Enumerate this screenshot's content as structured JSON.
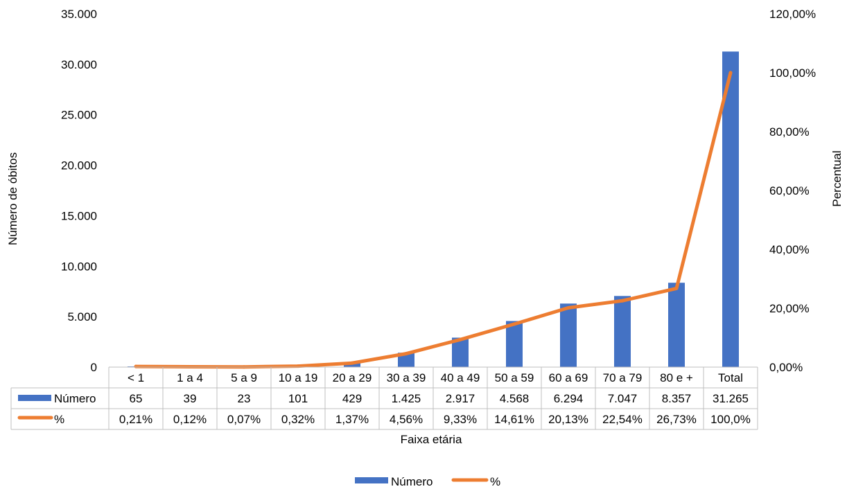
{
  "chart_data": {
    "type": "bar",
    "categories": [
      "< 1",
      "1 a 4",
      "5 a 9",
      "10 a 19",
      "20 a 29",
      "30 a 39",
      "40 a 49",
      "50 a 59",
      "60 a 69",
      "70 a 79",
      "80 e +",
      "Total"
    ],
    "series": [
      {
        "name": "Número",
        "type": "bar",
        "axis": "left",
        "color": "#4472c4",
        "values": [
          65,
          39,
          23,
          101,
          429,
          1425,
          2917,
          4568,
          6294,
          7047,
          8357,
          31265
        ],
        "labels": [
          "65",
          "39",
          "23",
          "101",
          "429",
          "1.425",
          "2.917",
          "4.568",
          "6.294",
          "7.047",
          "8.357",
          "31.265"
        ]
      },
      {
        "name": "%",
        "type": "line",
        "axis": "right",
        "color": "#ed7d31",
        "values": [
          0.21,
          0.12,
          0.07,
          0.32,
          1.37,
          4.56,
          9.33,
          14.61,
          20.13,
          22.54,
          26.73,
          100.0
        ],
        "labels": [
          "0,21%",
          "0,12%",
          "0,07%",
          "0,32%",
          "1,37%",
          "4,56%",
          "9,33%",
          "14,61%",
          "20,13%",
          "22,54%",
          "26,73%",
          "100,0%"
        ]
      }
    ],
    "xlabel": "Faixa etária",
    "ylabel": "Número de óbitos",
    "y2label": "Percentual",
    "ylim": [
      0,
      35000
    ],
    "y2lim": [
      0,
      120
    ],
    "yticks": [
      0,
      5000,
      10000,
      15000,
      20000,
      25000,
      30000,
      35000
    ],
    "ytick_labels": [
      "0",
      "5.000",
      "10.000",
      "15.000",
      "20.000",
      "25.000",
      "30.000",
      "35.000"
    ],
    "y2ticks": [
      0,
      20,
      40,
      60,
      80,
      100,
      120
    ],
    "y2tick_labels": [
      "0,00%",
      "20,00%",
      "40,00%",
      "60,00%",
      "80,00%",
      "100,00%",
      "120,00%"
    ],
    "grid": false,
    "data_table": true,
    "legend": "bottom-center"
  }
}
